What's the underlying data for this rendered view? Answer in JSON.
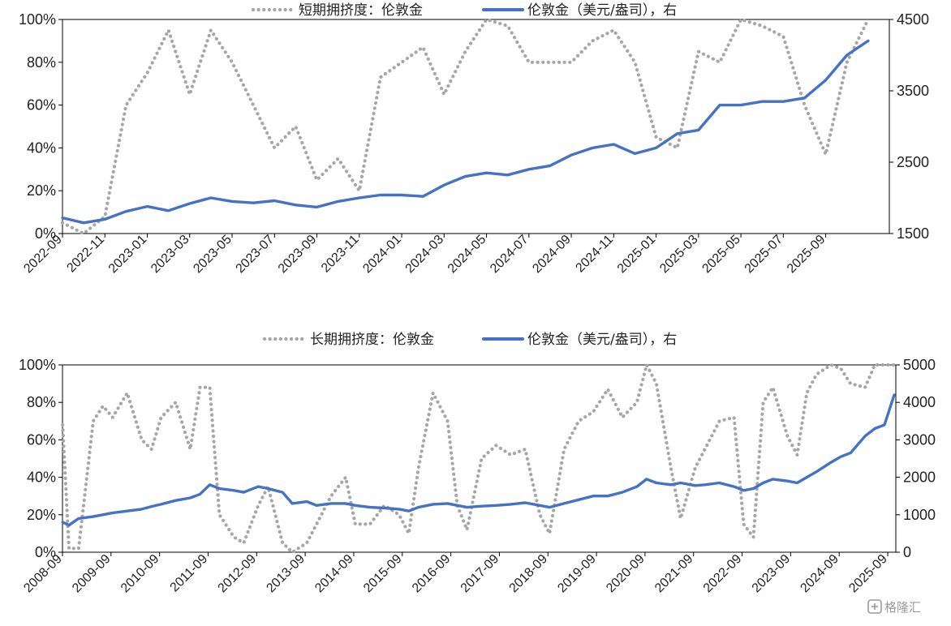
{
  "chart_data": [
    {
      "type": "line",
      "legend": [
        "短期拥挤度：伦敦金",
        "伦敦金（美元/盎司），右"
      ],
      "legend_position": "top-center",
      "y_left": {
        "ticks": [
          "0%",
          "20%",
          "40%",
          "60%",
          "80%",
          "100%"
        ],
        "range": [
          0,
          100
        ]
      },
      "y_right": {
        "ticks": [
          "1500",
          "2500",
          "3500",
          "4500"
        ],
        "range": [
          1500,
          4500
        ]
      },
      "x_ticks": [
        "2022-09",
        "2022-11",
        "2023-01",
        "2023-03",
        "2023-05",
        "2023-07",
        "2023-09",
        "2023-11",
        "2024-01",
        "2024-03",
        "2024-05",
        "2024-07",
        "2024-09",
        "2024-11",
        "2025-01",
        "2025-03",
        "2025-05",
        "2025-07",
        "2025-09"
      ],
      "series": [
        {
          "name": "短期拥挤度：伦敦金",
          "axis": "left",
          "style": "dotted",
          "color": "#a6a6a6",
          "x": [
            "2022-09",
            "2022-10",
            "2022-11",
            "2022-12",
            "2023-01",
            "2023-02",
            "2023-03",
            "2023-04",
            "2023-05",
            "2023-06",
            "2023-07",
            "2023-08",
            "2023-09",
            "2023-10",
            "2023-11",
            "2023-12",
            "2024-01",
            "2024-02",
            "2024-03",
            "2024-04",
            "2024-05",
            "2024-06",
            "2024-07",
            "2024-08",
            "2024-09",
            "2024-10",
            "2024-11",
            "2024-12",
            "2025-01",
            "2025-02",
            "2025-03",
            "2025-04",
            "2025-05",
            "2025-06",
            "2025-07",
            "2025-08",
            "2025-09",
            "2025-10",
            "2025-11"
          ],
          "values": [
            5,
            0,
            8,
            60,
            75,
            95,
            65,
            95,
            80,
            60,
            40,
            50,
            25,
            35,
            20,
            73,
            80,
            87,
            65,
            85,
            100,
            97,
            80,
            80,
            80,
            90,
            95,
            80,
            45,
            40,
            85,
            80,
            100,
            97,
            92,
            60,
            37,
            80,
            100
          ]
        },
        {
          "name": "伦敦金（美元/盎司），右",
          "axis": "right",
          "style": "solid",
          "color": "#4472c4",
          "x": [
            "2022-09",
            "2022-10",
            "2022-11",
            "2022-12",
            "2023-01",
            "2023-02",
            "2023-03",
            "2023-04",
            "2023-05",
            "2023-06",
            "2023-07",
            "2023-08",
            "2023-09",
            "2023-10",
            "2023-11",
            "2023-12",
            "2024-01",
            "2024-02",
            "2024-03",
            "2024-04",
            "2024-05",
            "2024-06",
            "2024-07",
            "2024-08",
            "2024-09",
            "2024-10",
            "2024-11",
            "2024-12",
            "2025-01",
            "2025-02",
            "2025-03",
            "2025-04",
            "2025-05",
            "2025-06",
            "2025-07",
            "2025-08",
            "2025-09",
            "2025-10",
            "2025-11"
          ],
          "values": [
            1720,
            1650,
            1700,
            1810,
            1880,
            1820,
            1920,
            2000,
            1950,
            1930,
            1960,
            1900,
            1870,
            1950,
            2000,
            2040,
            2040,
            2020,
            2180,
            2300,
            2350,
            2320,
            2400,
            2450,
            2600,
            2700,
            2750,
            2620,
            2700,
            2900,
            2950,
            3300,
            3300,
            3350,
            3350,
            3400,
            3650,
            4000,
            4200
          ]
        }
      ]
    },
    {
      "type": "line",
      "legend": [
        "长期拥挤度：伦敦金",
        "伦敦金（美元/盎司），右"
      ],
      "legend_position": "top-center",
      "y_left": {
        "ticks": [
          "0%",
          "20%",
          "40%",
          "60%",
          "80%",
          "100%"
        ],
        "range": [
          0,
          100
        ]
      },
      "y_right": {
        "ticks": [
          "0",
          "1000",
          "2000",
          "3000",
          "4000",
          "5000"
        ],
        "range": [
          0,
          5000
        ]
      },
      "x_ticks": [
        "2008-09",
        "2009-09",
        "2010-09",
        "2011-09",
        "2012-09",
        "2013-09",
        "2014-09",
        "2015-09",
        "2016-09",
        "2017-09",
        "2018-09",
        "2019-09",
        "2020-09",
        "2021-09",
        "2022-09",
        "2023-09",
        "2024-09",
        "2025-09"
      ],
      "series": [
        {
          "name": "长期拥挤度：伦敦金",
          "axis": "left",
          "style": "dotted",
          "color": "#a6a6a6",
          "x": [
            2008.67,
            2008.8,
            2009.0,
            2009.3,
            2009.5,
            2009.7,
            2010.0,
            2010.3,
            2010.5,
            2010.7,
            2011.0,
            2011.3,
            2011.5,
            2011.7,
            2011.9,
            2012.2,
            2012.4,
            2012.7,
            2012.9,
            2013.2,
            2013.4,
            2013.7,
            2013.9,
            2014.2,
            2014.5,
            2014.7,
            2015.0,
            2015.3,
            2015.6,
            2015.8,
            2016.0,
            2016.3,
            2016.6,
            2016.8,
            2017.0,
            2017.3,
            2017.6,
            2017.9,
            2018.2,
            2018.5,
            2018.7,
            2019.0,
            2019.3,
            2019.6,
            2019.9,
            2020.2,
            2020.5,
            2020.7,
            2020.9,
            2021.2,
            2021.4,
            2021.7,
            2021.9,
            2022.2,
            2022.5,
            2022.7,
            2022.9,
            2023.1,
            2023.3,
            2023.6,
            2023.8,
            2024.0,
            2024.2,
            2024.5,
            2024.7,
            2024.9,
            2025.2,
            2025.4,
            2025.6,
            2025.8
          ],
          "values": [
            68,
            2,
            2,
            70,
            78,
            72,
            85,
            60,
            55,
            72,
            80,
            55,
            88,
            88,
            20,
            8,
            5,
            25,
            35,
            5,
            0,
            5,
            15,
            30,
            40,
            15,
            15,
            25,
            20,
            10,
            45,
            85,
            70,
            25,
            12,
            50,
            57,
            52,
            55,
            20,
            10,
            55,
            70,
            75,
            87,
            72,
            80,
            100,
            90,
            45,
            18,
            45,
            55,
            70,
            72,
            15,
            8,
            80,
            88,
            62,
            52,
            85,
            95,
            100,
            98,
            90,
            88,
            100,
            100,
            100
          ]
        },
        {
          "name": "伦敦金（美元/盎司），右",
          "axis": "right",
          "style": "solid",
          "color": "#4472c4",
          "x": [
            2008.67,
            2008.8,
            2009.0,
            2009.3,
            2009.5,
            2009.7,
            2010.0,
            2010.3,
            2010.5,
            2010.7,
            2011.0,
            2011.3,
            2011.5,
            2011.7,
            2011.9,
            2012.2,
            2012.4,
            2012.7,
            2012.9,
            2013.2,
            2013.4,
            2013.7,
            2013.9,
            2014.2,
            2014.5,
            2014.7,
            2015.0,
            2015.3,
            2015.6,
            2015.8,
            2016.0,
            2016.3,
            2016.6,
            2016.8,
            2017.0,
            2017.3,
            2017.6,
            2017.9,
            2018.2,
            2018.5,
            2018.7,
            2019.0,
            2019.3,
            2019.6,
            2019.9,
            2020.2,
            2020.5,
            2020.7,
            2020.9,
            2021.2,
            2021.4,
            2021.7,
            2021.9,
            2022.2,
            2022.5,
            2022.7,
            2022.9,
            2023.1,
            2023.3,
            2023.6,
            2023.8,
            2024.0,
            2024.2,
            2024.5,
            2024.7,
            2024.9,
            2025.2,
            2025.4,
            2025.6,
            2025.8
          ],
          "values": [
            800,
            720,
            900,
            950,
            1000,
            1050,
            1100,
            1150,
            1220,
            1280,
            1380,
            1450,
            1550,
            1800,
            1700,
            1650,
            1600,
            1750,
            1700,
            1600,
            1300,
            1350,
            1250,
            1300,
            1300,
            1250,
            1200,
            1180,
            1150,
            1100,
            1200,
            1280,
            1300,
            1250,
            1200,
            1230,
            1250,
            1280,
            1320,
            1250,
            1200,
            1300,
            1400,
            1500,
            1500,
            1600,
            1750,
            1950,
            1850,
            1800,
            1850,
            1780,
            1800,
            1850,
            1750,
            1650,
            1700,
            1850,
            1950,
            1900,
            1850,
            2000,
            2150,
            2400,
            2550,
            2650,
            3100,
            3300,
            3400,
            4200
          ]
        }
      ]
    }
  ],
  "watermark": {
    "icon": "gelonghui-logo-icon",
    "text": "格隆汇"
  }
}
